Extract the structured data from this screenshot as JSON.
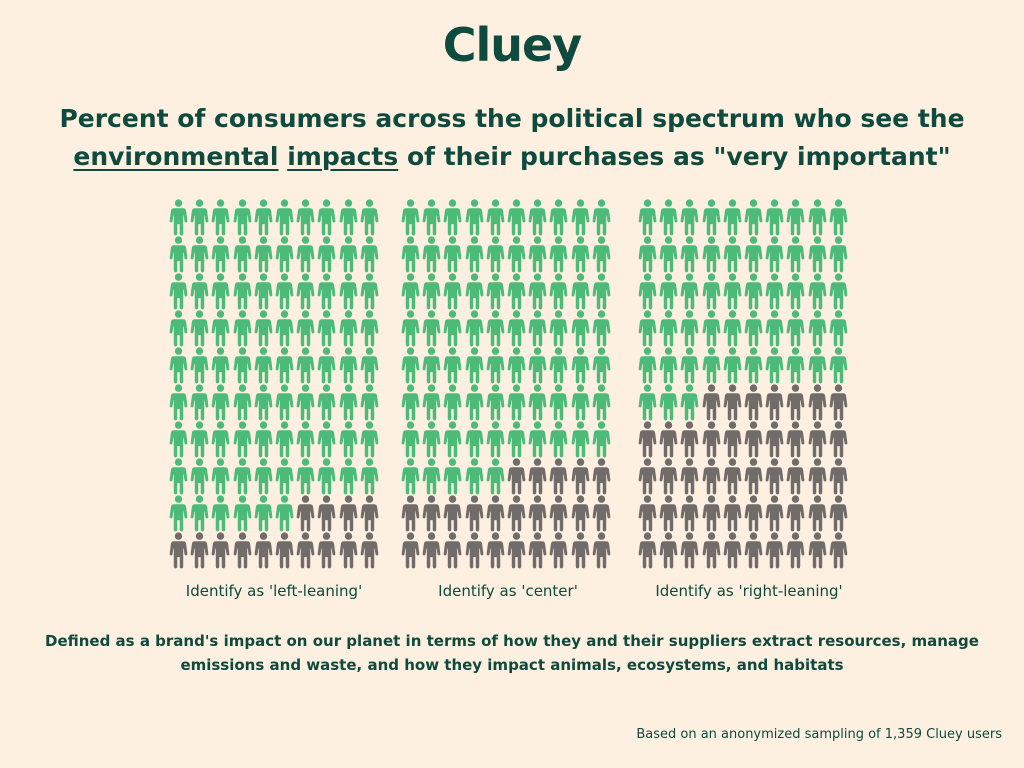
{
  "brand": {
    "logo_text": "Cluey"
  },
  "header": {
    "title_line1": "Percent of consumers across the political spectrum who see the",
    "title_line2_word1": "environmental",
    "title_line2_word2": "impacts",
    "title_line2_rest": " of their purchases as \"very important\""
  },
  "chart_data": {
    "type": "pictograph",
    "icons_per_group": 100,
    "unit": "%",
    "categories": [
      "Identify as 'left-leaning'",
      "Identify as 'center'",
      "Identify as 'right-leaning'"
    ],
    "values": [
      86,
      75,
      53
    ],
    "colors": {
      "very_important": "#4cbb7a",
      "other": "#716b6a"
    }
  },
  "footnote": "Defined as a brand's impact on our planet in terms of how they and their suppliers extract resources, manage emissions and waste, and how they impact animals, ecosystems, and habitats",
  "source": "Based on an anonymized sampling of 1,359 Cluey users"
}
